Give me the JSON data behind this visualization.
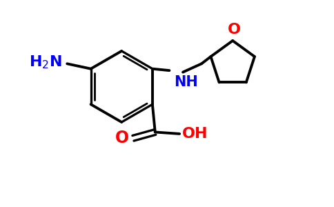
{
  "bg_color": "#ffffff",
  "bond_color": "#000000",
  "bond_width": 2.8,
  "atom_colors": {
    "N": "#0000ff",
    "O": "#ff0000",
    "C": "#000000"
  },
  "font_size_label": 15,
  "figsize": [
    4.84,
    3.0
  ],
  "dpi": 100
}
